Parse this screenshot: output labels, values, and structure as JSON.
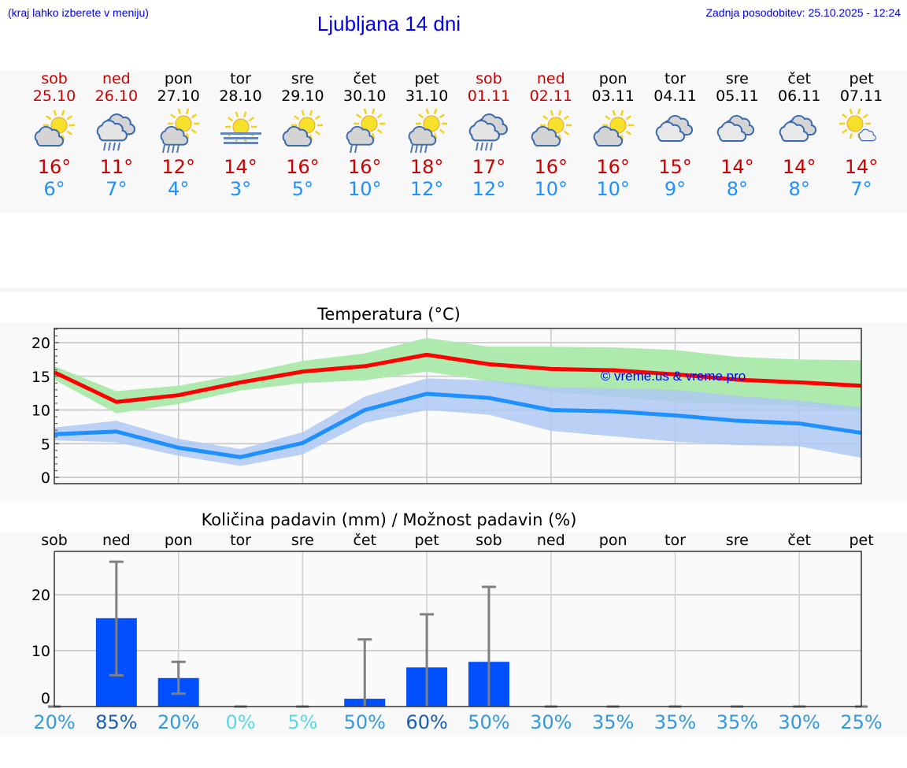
{
  "header": {
    "hint": "(kraj lahko izberete v meniju)",
    "title": "Ljubljana 14 dni",
    "updated": "Zadnja posodobitev: 25.10.2025 - 12:24"
  },
  "colors": {
    "max": "#cc0000",
    "min": "#1e90ff",
    "weekend": "#cc0000",
    "bar": "#0050ff",
    "max_band": "#aeeaae",
    "min_band": "#aec8f2"
  },
  "days": [
    {
      "dow": "sob",
      "date": "25.10",
      "weekend": true,
      "max": "16°",
      "min": "6°",
      "icon": "partly-cloudy"
    },
    {
      "dow": "ned",
      "date": "26.10",
      "weekend": true,
      "max": "11°",
      "min": "7°",
      "icon": "cloudy-rain"
    },
    {
      "dow": "pon",
      "date": "27.10",
      "weekend": false,
      "max": "12°",
      "min": "4°",
      "icon": "partly-cloudy-rain"
    },
    {
      "dow": "tor",
      "date": "28.10",
      "weekend": false,
      "max": "14°",
      "min": "3°",
      "icon": "sun-fog"
    },
    {
      "dow": "sre",
      "date": "29.10",
      "weekend": false,
      "max": "16°",
      "min": "5°",
      "icon": "partly-cloudy"
    },
    {
      "dow": "čet",
      "date": "30.10",
      "weekend": false,
      "max": "16°",
      "min": "10°",
      "icon": "partly-cloudy-light-rain"
    },
    {
      "dow": "pet",
      "date": "31.10",
      "weekend": false,
      "max": "18°",
      "min": "12°",
      "icon": "partly-cloudy-rain"
    },
    {
      "dow": "sob",
      "date": "01.11",
      "weekend": true,
      "max": "17°",
      "min": "12°",
      "icon": "cloudy-rain"
    },
    {
      "dow": "ned",
      "date": "02.11",
      "weekend": true,
      "max": "16°",
      "min": "10°",
      "icon": "partly-cloudy"
    },
    {
      "dow": "pon",
      "date": "03.11",
      "weekend": false,
      "max": "16°",
      "min": "10°",
      "icon": "partly-cloudy"
    },
    {
      "dow": "tor",
      "date": "04.11",
      "weekend": false,
      "max": "15°",
      "min": "9°",
      "icon": "cloudy"
    },
    {
      "dow": "sre",
      "date": "05.11",
      "weekend": false,
      "max": "14°",
      "min": "8°",
      "icon": "cloudy"
    },
    {
      "dow": "čet",
      "date": "06.11",
      "weekend": false,
      "max": "14°",
      "min": "8°",
      "icon": "cloudy"
    },
    {
      "dow": "pet",
      "date": "07.11",
      "weekend": false,
      "max": "14°",
      "min": "7°",
      "icon": "sunny-small-cloud"
    }
  ],
  "chart_data": [
    {
      "type": "line",
      "title": "Temperatura (°C)",
      "watermark": "© vreme.us & vreme.pro",
      "ylim": [
        -1,
        23
      ],
      "yticks": [
        "0",
        "5",
        "10",
        "15",
        "20"
      ],
      "grid": true,
      "series": [
        {
          "values": [
            15.6,
            11.2,
            12.2,
            14.1,
            15.7,
            16.5,
            18.2,
            16.8,
            16.1,
            15.9,
            15.3,
            14.5,
            14.1,
            13.6
          ],
          "band_low": [
            14.5,
            9.5,
            10.9,
            12.9,
            14.0,
            14.4,
            15.7,
            14.3,
            12.7,
            12.0,
            11.2,
            10.9,
            10.6,
            9.8
          ],
          "band_high": [
            16.5,
            12.8,
            13.6,
            15.3,
            17.3,
            18.4,
            20.7,
            19.4,
            19.4,
            19.3,
            18.9,
            17.9,
            17.5,
            17.4
          ]
        },
        {
          "values": [
            6.4,
            6.8,
            4.4,
            3.0,
            5.1,
            10.0,
            12.4,
            11.8,
            10.0,
            9.8,
            9.2,
            8.4,
            8.0,
            6.6
          ],
          "band_low": [
            5.5,
            5.2,
            3.2,
            1.7,
            3.4,
            8.1,
            10.0,
            9.3,
            6.9,
            6.1,
            5.3,
            4.8,
            4.6,
            2.9
          ],
          "band_high": [
            7.4,
            8.4,
            5.7,
            4.2,
            6.7,
            12.0,
            14.7,
            14.4,
            13.4,
            13.2,
            13.0,
            12.1,
            11.4,
            10.4
          ]
        }
      ]
    },
    {
      "type": "bar",
      "title": "Količina padavin (mm) / Možnost padavin (%)",
      "categories": [
        "sob",
        "ned",
        "pon",
        "tor",
        "sre",
        "čet",
        "pet",
        "sob",
        "ned",
        "pon",
        "tor",
        "sre",
        "čet",
        "pet"
      ],
      "ylim": [
        -1.5,
        28
      ],
      "yticks": [
        "0",
        "10",
        "20"
      ],
      "grid": true,
      "values": [
        0,
        15.8,
        5.1,
        0,
        0,
        1.4,
        7.0,
        8.0,
        0,
        0,
        0,
        0,
        0,
        0
      ],
      "err_low": [
        0,
        5.6,
        2.3,
        0,
        0,
        0,
        0,
        0,
        0,
        0,
        0,
        0,
        0,
        0
      ],
      "err_high": [
        0,
        25.9,
        8.0,
        0,
        0,
        12.0,
        16.5,
        21.4,
        0,
        0,
        0,
        0,
        0,
        0
      ],
      "probability": [
        "20%",
        "85%",
        "20%",
        "0%",
        "5%",
        "50%",
        "60%",
        "50%",
        "30%",
        "35%",
        "35%",
        "35%",
        "30%",
        "25%"
      ],
      "probability_colors": [
        "#3399dd",
        "#1a5fb4",
        "#3399dd",
        "#5ad8e6",
        "#5ad8e6",
        "#3399dd",
        "#1a5fb4",
        "#3399dd",
        "#3399dd",
        "#3399dd",
        "#3399dd",
        "#3399dd",
        "#3399dd",
        "#3399dd"
      ]
    }
  ]
}
